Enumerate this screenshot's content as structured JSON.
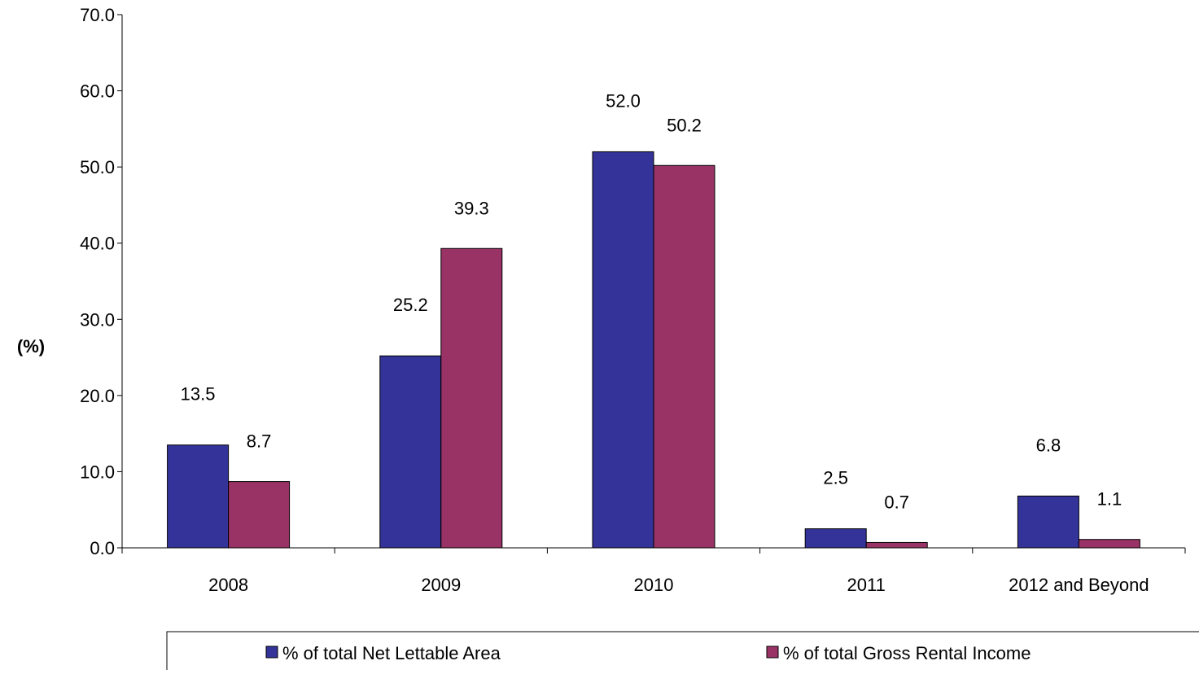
{
  "chart_data": {
    "type": "bar",
    "title": "",
    "xlabel": "",
    "ylabel": "(%)",
    "ylim": [
      0,
      70
    ],
    "yticks": [
      "0.0",
      "10.0",
      "20.0",
      "30.0",
      "40.0",
      "50.0",
      "60.0",
      "70.0"
    ],
    "categories": [
      "2008",
      "2009",
      "2010",
      "2011",
      "2012 and Beyond"
    ],
    "series": [
      {
        "name": "% of total Net Lettable Area",
        "color": "#333399",
        "values": [
          13.5,
          25.2,
          52.0,
          2.5,
          6.8
        ],
        "labels": [
          "13.5",
          "25.2",
          "52.0",
          "2.5",
          "6.8"
        ]
      },
      {
        "name": "% of total Gross Rental Income",
        "color": "#993366",
        "values": [
          8.7,
          39.3,
          50.2,
          0.7,
          1.1
        ],
        "labels": [
          "8.7",
          "39.3",
          "50.2",
          "0.7",
          "1.1"
        ]
      }
    ],
    "grid": false,
    "legend_position": "bottom"
  }
}
